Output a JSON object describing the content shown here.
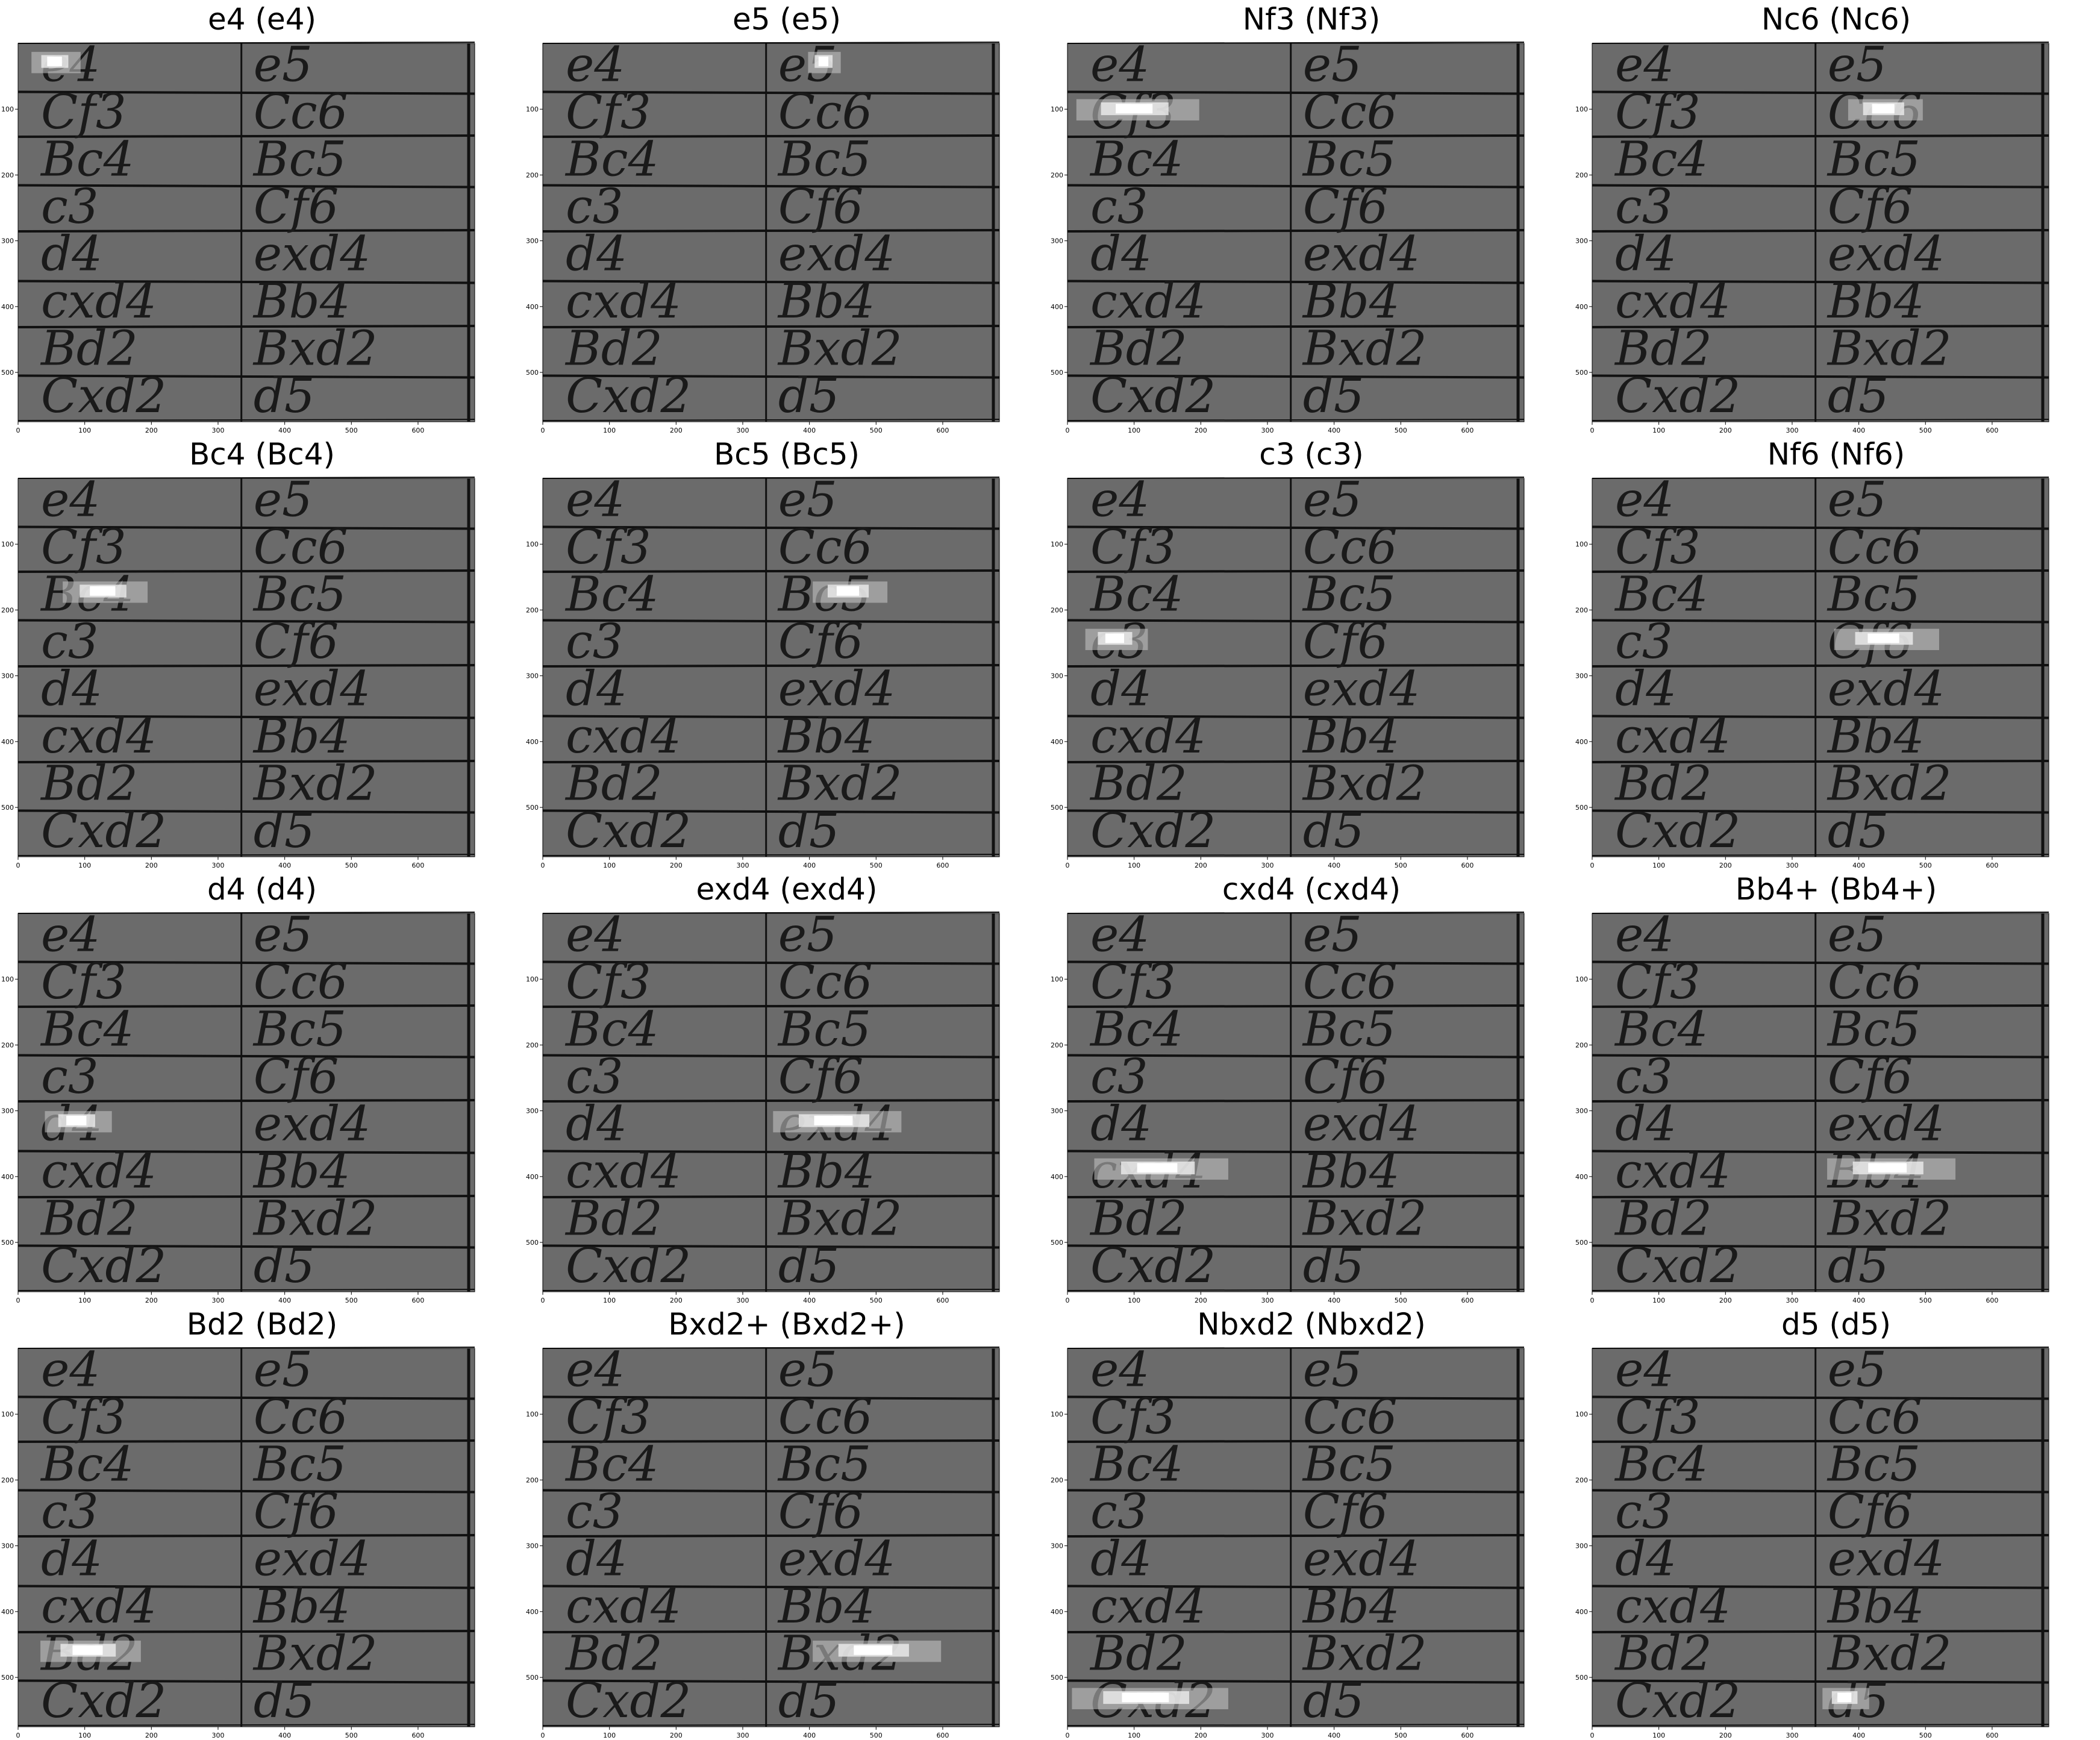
{
  "figure": {
    "panels": [
      {
        "title": "e4 (e4)",
        "highlight": {
          "col": 0,
          "row": 0,
          "fx": 0.06,
          "fw": 0.22
        }
      },
      {
        "title": "e5 (e5)",
        "highlight": {
          "col": 1,
          "row": 0,
          "fx": 0.18,
          "fw": 0.14
        }
      },
      {
        "title": "Nf3 (Nf3)",
        "highlight": {
          "col": 0,
          "row": 1,
          "fx": 0.04,
          "fw": 0.55
        }
      },
      {
        "title": "Nc6 (Nc6)",
        "highlight": {
          "col": 1,
          "row": 1,
          "fx": 0.14,
          "fw": 0.32
        }
      },
      {
        "title": "Bc4 (Bc4)",
        "highlight": {
          "col": 0,
          "row": 2,
          "fx": 0.2,
          "fw": 0.38
        }
      },
      {
        "title": "Bc5 (Bc5)",
        "highlight": {
          "col": 1,
          "row": 2,
          "fx": 0.2,
          "fw": 0.32
        }
      },
      {
        "title": "c3 (c3)",
        "highlight": {
          "col": 0,
          "row": 3,
          "fx": 0.08,
          "fw": 0.28
        }
      },
      {
        "title": "Nf6 (Nf6)",
        "highlight": {
          "col": 1,
          "row": 3,
          "fx": 0.08,
          "fw": 0.45
        }
      },
      {
        "title": "d4 (d4)",
        "highlight": {
          "col": 0,
          "row": 4,
          "fx": 0.12,
          "fw": 0.3
        }
      },
      {
        "title": "exd4 (exd4)",
        "highlight": {
          "col": 1,
          "row": 4,
          "fx": 0.03,
          "fw": 0.55
        }
      },
      {
        "title": "cxd4 (cxd4)",
        "highlight": {
          "col": 0,
          "row": 5,
          "fx": 0.12,
          "fw": 0.6
        }
      },
      {
        "title": "Bb4+ (Bb4+)",
        "highlight": {
          "col": 1,
          "row": 5,
          "fx": 0.05,
          "fw": 0.55
        }
      },
      {
        "title": "Bd2 (Bd2)",
        "highlight": {
          "col": 0,
          "row": 6,
          "fx": 0.1,
          "fw": 0.45
        }
      },
      {
        "title": "Bxd2+ (Bxd2+)",
        "highlight": {
          "col": 1,
          "row": 6,
          "fx": 0.2,
          "fw": 0.55
        }
      },
      {
        "title": "Nbxd2 (Nbxd2)",
        "highlight": {
          "col": 0,
          "row": 7,
          "fx": 0.02,
          "fw": 0.7
        }
      },
      {
        "title": "d5 (d5)",
        "highlight": {
          "col": 1,
          "row": 7,
          "fx": 0.03,
          "fw": 0.2
        }
      }
    ],
    "scoresheet": {
      "rows": [
        [
          "e4",
          "e5"
        ],
        [
          "Cf3",
          "Cc6"
        ],
        [
          "Bc4",
          "Bc5"
        ],
        [
          "c3",
          "Cf6"
        ],
        [
          "d4",
          "exd4"
        ],
        [
          "cxd4",
          "Bb4"
        ],
        [
          "Bd2",
          "Bxd2"
        ],
        [
          "Cxd2",
          "d5"
        ]
      ]
    },
    "axes": {
      "x_ticks": [
        "0",
        "100",
        "200",
        "300",
        "400",
        "500",
        "600"
      ],
      "y_ticks": [
        "100",
        "200",
        "300",
        "400",
        "500"
      ],
      "x_max": 685,
      "y_max": 575
    },
    "colors": {
      "background": "#6b6b6b",
      "ink": "#1a1a1a",
      "rule": "#111111",
      "highlight": "#ffffff"
    }
  }
}
